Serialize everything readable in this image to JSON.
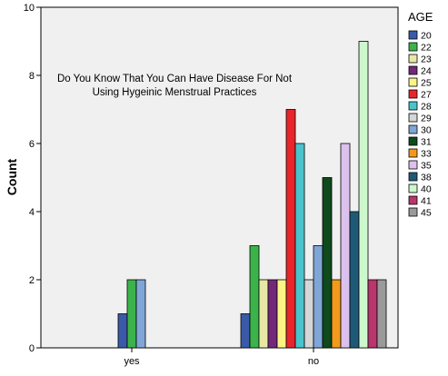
{
  "chart_data": {
    "type": "bar",
    "title_lines": [
      "Do You Know That You Can Have Disease For Not",
      "Using Hygeinic Menstrual Practices"
    ],
    "ylabel": "Count",
    "xlabel": "",
    "categories": [
      "yes",
      "no"
    ],
    "ylim": [
      0,
      10
    ],
    "yticks": [
      0,
      2,
      4,
      6,
      8,
      10
    ],
    "grid": false,
    "legend_title": "AGE",
    "legend_position": "right",
    "series": [
      {
        "name": "20",
        "color": "#3a5aa8",
        "values": [
          1,
          1
        ]
      },
      {
        "name": "22",
        "color": "#3cb34a",
        "values": [
          2,
          3
        ]
      },
      {
        "name": "23",
        "color": "#e8e8a6",
        "values": [
          0,
          2
        ]
      },
      {
        "name": "24",
        "color": "#73287a",
        "values": [
          0,
          2
        ]
      },
      {
        "name": "25",
        "color": "#fbf385",
        "values": [
          0,
          2
        ]
      },
      {
        "name": "27",
        "color": "#e8252b",
        "values": [
          0,
          7
        ]
      },
      {
        "name": "28",
        "color": "#4bc3cc",
        "values": [
          0,
          6
        ]
      },
      {
        "name": "29",
        "color": "#d6d6d6",
        "values": [
          0,
          2
        ]
      },
      {
        "name": "30",
        "color": "#7fa6d6",
        "values": [
          2,
          3
        ]
      },
      {
        "name": "31",
        "color": "#0e4a1c",
        "values": [
          0,
          5
        ]
      },
      {
        "name": "33",
        "color": "#f39a1c",
        "values": [
          0,
          2
        ]
      },
      {
        "name": "35",
        "color": "#dcc1ee",
        "values": [
          0,
          6
        ]
      },
      {
        "name": "38",
        "color": "#1e5a78",
        "values": [
          0,
          4
        ]
      },
      {
        "name": "40",
        "color": "#cdf8cd",
        "values": [
          0,
          9
        ]
      },
      {
        "name": "41",
        "color": "#b8356e",
        "values": [
          0,
          2
        ]
      },
      {
        "name": "45",
        "color": "#9a9a9a",
        "values": [
          0,
          2
        ]
      }
    ]
  }
}
